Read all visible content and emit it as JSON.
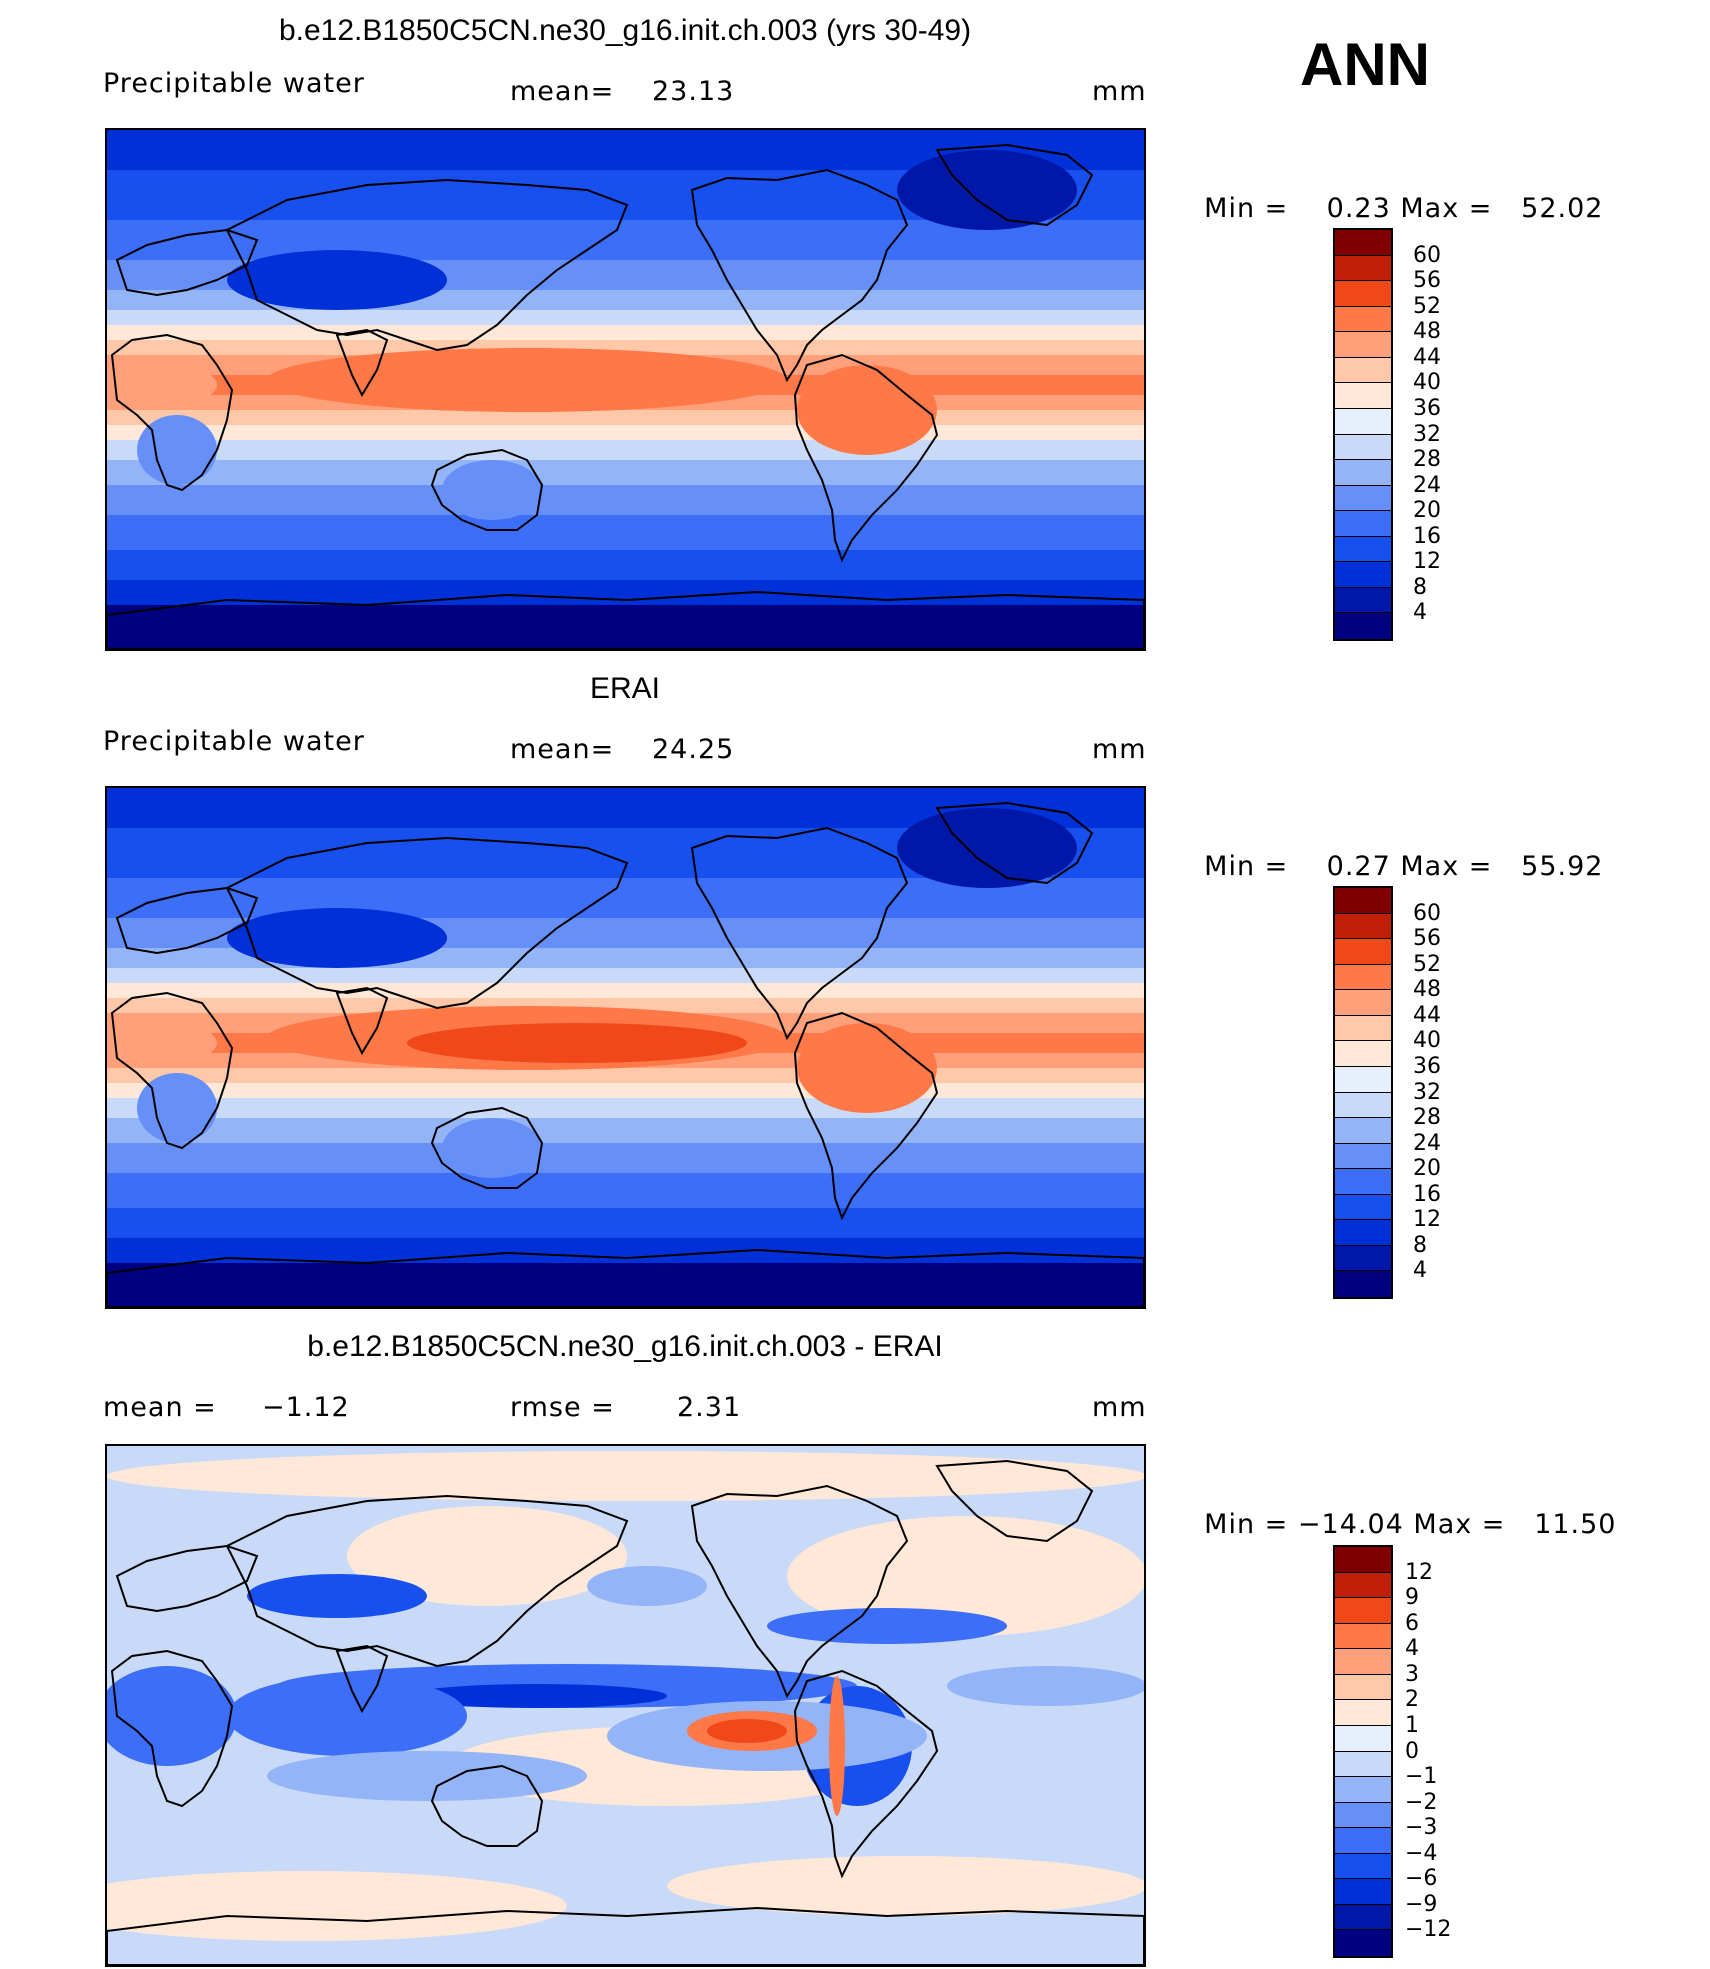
{
  "season": "ANN",
  "chart_data": [
    {
      "type": "heatmap",
      "title": "b.e12.B1850C5CN.ne30_g16.init.ch.003 (yrs 30-49)",
      "variable": "Precipitable water",
      "stat_label": "mean=",
      "stat_value": "23.13",
      "units": "mm",
      "min_label": "Min =",
      "min": "0.23",
      "max_label": "Max =",
      "max": "52.02",
      "colorbar": {
        "levels": [
          "4",
          "8",
          "12",
          "16",
          "20",
          "24",
          "28",
          "32",
          "36",
          "40",
          "44",
          "48",
          "52",
          "56",
          "60"
        ],
        "colors": [
          "#000080",
          "#0018a8",
          "#0030d8",
          "#1850f0",
          "#3c6ef8",
          "#6690f8",
          "#94b4f8",
          "#c8daf8",
          "#e6f0fc",
          "#ffe8d8",
          "#ffc8a8",
          "#ffa07a",
          "#ff7848",
          "#f04818",
          "#c02008",
          "#800000"
        ]
      }
    },
    {
      "type": "heatmap",
      "title": "ERAI",
      "variable": "Precipitable water",
      "stat_label": "mean=",
      "stat_value": "24.25",
      "units": "mm",
      "min_label": "Min =",
      "min": "0.27",
      "max_label": "Max =",
      "max": "55.92",
      "colorbar": {
        "levels": [
          "4",
          "8",
          "12",
          "16",
          "20",
          "24",
          "28",
          "32",
          "36",
          "40",
          "44",
          "48",
          "52",
          "56",
          "60"
        ],
        "colors": [
          "#000080",
          "#0018a8",
          "#0030d8",
          "#1850f0",
          "#3c6ef8",
          "#6690f8",
          "#94b4f8",
          "#c8daf8",
          "#e6f0fc",
          "#ffe8d8",
          "#ffc8a8",
          "#ffa07a",
          "#ff7848",
          "#f04818",
          "#c02008",
          "#800000"
        ]
      }
    },
    {
      "type": "heatmap",
      "title": "b.e12.B1850C5CN.ne30_g16.init.ch.003 - ERAI",
      "stat_label": "mean =",
      "stat_value": "−1.12",
      "stat2_label": "rmse =",
      "stat2_value": "2.31",
      "units": "mm",
      "min_label": "Min =",
      "min": "−14.04",
      "max_label": "Max =",
      "max": "11.50",
      "colorbar": {
        "levels": [
          "−12",
          "−9",
          "−6",
          "−4",
          "−3",
          "−2",
          "−1",
          "0",
          "1",
          "2",
          "3",
          "4",
          "6",
          "9",
          "12"
        ],
        "colors": [
          "#000080",
          "#0018a8",
          "#0030d8",
          "#1850f0",
          "#3c6ef8",
          "#6690f8",
          "#94b4f8",
          "#c8daf8",
          "#e6f0fc",
          "#ffe8d8",
          "#ffc8a8",
          "#ffa07a",
          "#ff7848",
          "#f04818",
          "#c02008",
          "#800000"
        ]
      }
    }
  ]
}
